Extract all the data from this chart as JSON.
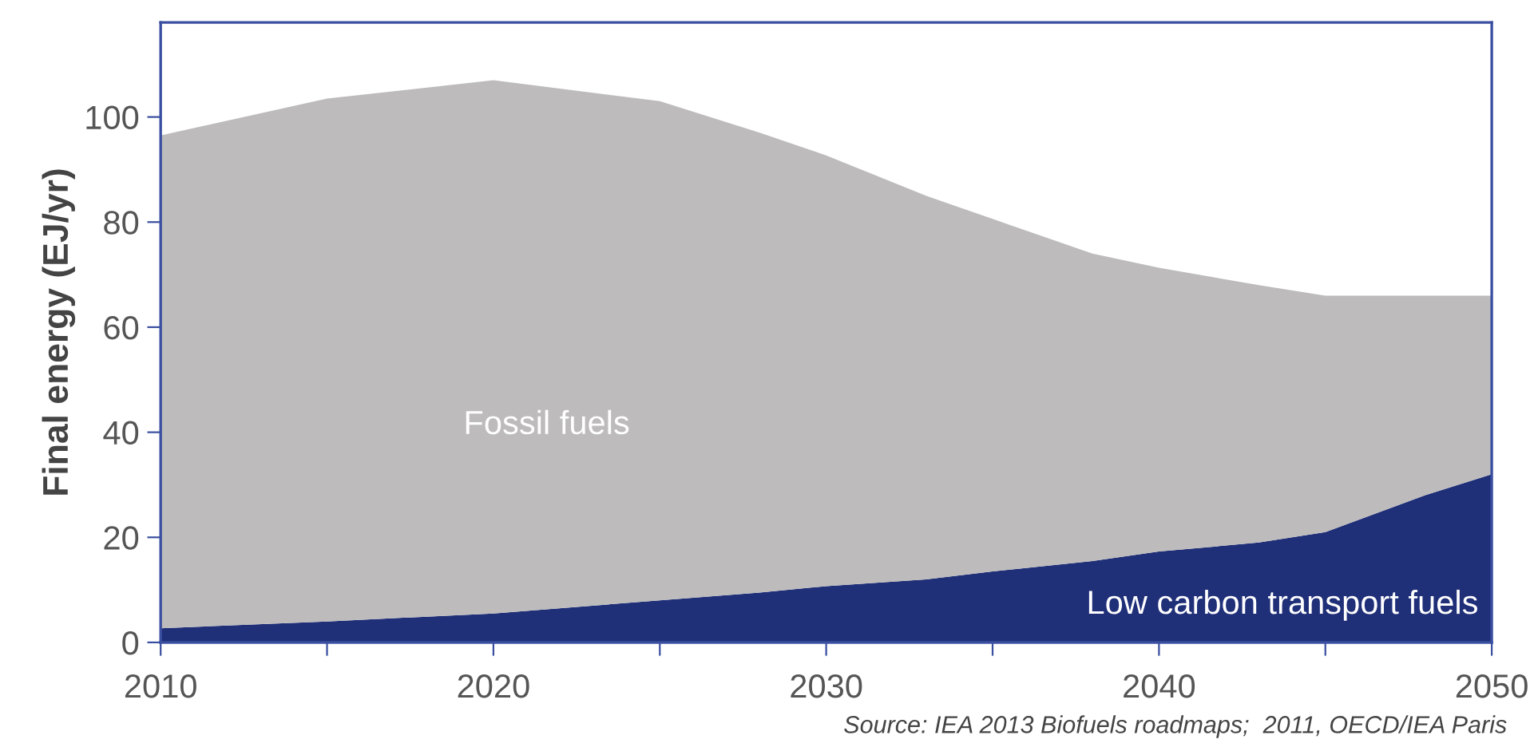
{
  "chart_data": {
    "type": "area",
    "stacked": true,
    "ylabel": "Final energy (EJ/yr)",
    "x": [
      2010,
      2015,
      2020,
      2025,
      2028,
      2030,
      2033,
      2035,
      2038,
      2040,
      2043,
      2045,
      2048,
      2050
    ],
    "series": [
      {
        "name": "Low carbon transport fuels",
        "color": "#1f2f78",
        "values": [
          2.7,
          4,
          5.5,
          8,
          9.5,
          10.7,
          12,
          13.5,
          15.5,
          17.3,
          19,
          21,
          28,
          32
        ]
      },
      {
        "name": "Fossil fuels",
        "color": "#bdbbbb",
        "values": [
          93.8,
          99.5,
          101.5,
          95,
          87.5,
          82,
          73,
          67.1,
          58.5,
          54,
          49,
          45,
          38,
          34
        ]
      }
    ],
    "xlim": [
      2010,
      2050
    ],
    "ylim": [
      0,
      118
    ],
    "xticks": [
      2010,
      {
        "value": 2015,
        "label": null
      },
      2020,
      {
        "value": 2025,
        "label": null
      },
      2030,
      {
        "value": 2035,
        "label": null
      },
      2040,
      {
        "value": 2045,
        "label": null
      },
      2050
    ],
    "yticks": [
      0,
      20,
      40,
      60,
      80,
      100
    ],
    "grid": false,
    "legend": false,
    "annotations": [
      "Source: IEA 2013 Biofuels roadmaps;  2011, OECD/IEA Paris"
    ]
  }
}
